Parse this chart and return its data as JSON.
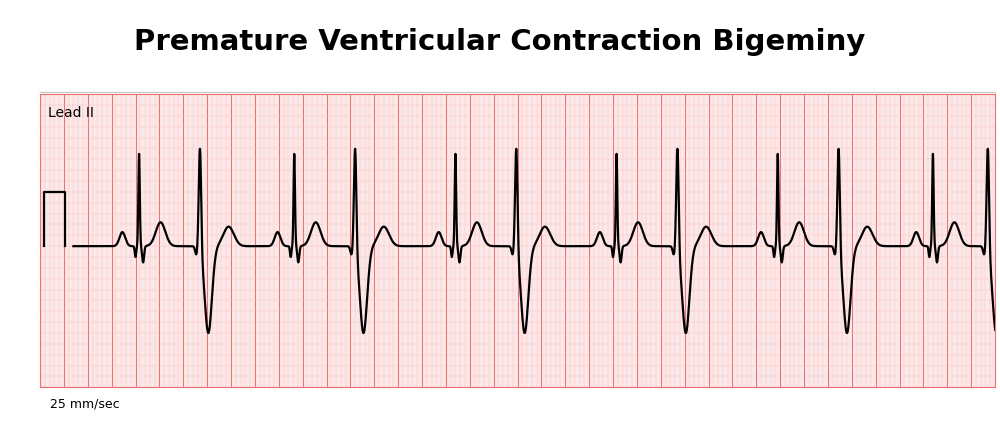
{
  "title": "Premature Ventricular Contraction Bigeminy",
  "title_fontsize": 21,
  "title_fontweight": "bold",
  "lead_label": "Lead II",
  "speed_label": "25 mm/sec",
  "background_color": "#ffffff",
  "grid_color_major": "#f07070",
  "grid_color_minor": "#f8c0c0",
  "ecg_color": "#000000",
  "ecg_linewidth": 1.6,
  "fig_width": 10.0,
  "fig_height": 4.28,
  "ecg_panel_bg": "#fce8e8",
  "minor_alpha_minor": 0.5,
  "minor_alpha_major": 0.9
}
